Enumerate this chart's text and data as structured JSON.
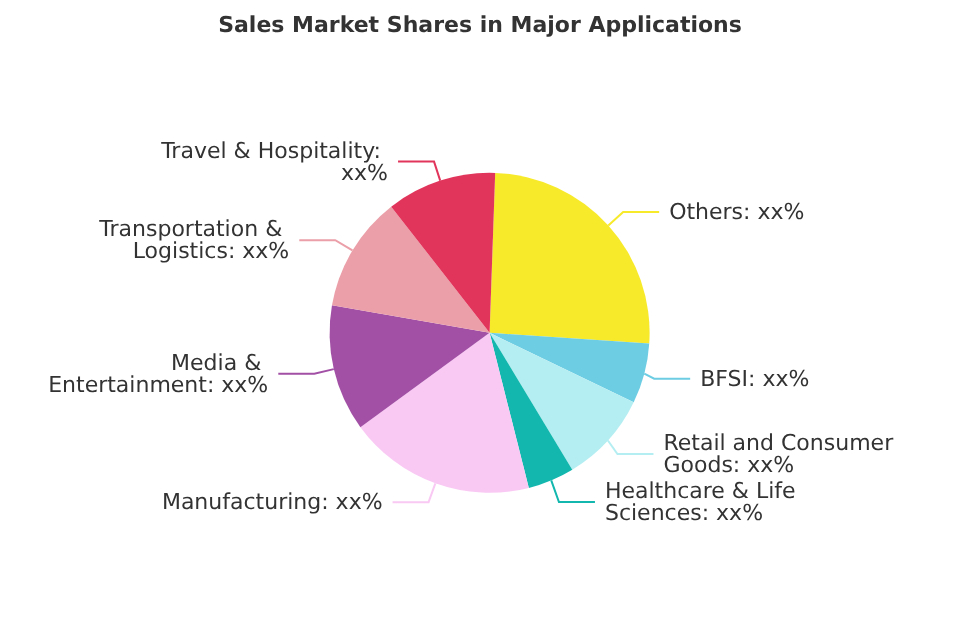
{
  "chart_data": {
    "type": "pie",
    "title": "Sales Market Shares in Major Applications",
    "categories": [
      "Others: xx%",
      "BFSI: xx%",
      "Retail and Consumer Goods: xx%",
      "Healthcare & Life Sciences: xx%",
      "Manufacturing: xx%",
      "Media & Entertainment: xx%",
      "Transportation & Logistics: xx%",
      "Travel & Hospitality: xx%"
    ],
    "values": [
      25.5,
      6.1,
      9.2,
      4.7,
      18.9,
      12.8,
      11.7,
      11.1
    ],
    "colors": [
      "#f7ea2a",
      "#6dcde3",
      "#b5eef2",
      "#13b7ae",
      "#f9c9f4",
      "#a24fa6",
      "#eb9fa8",
      "#e2355c"
    ]
  }
}
